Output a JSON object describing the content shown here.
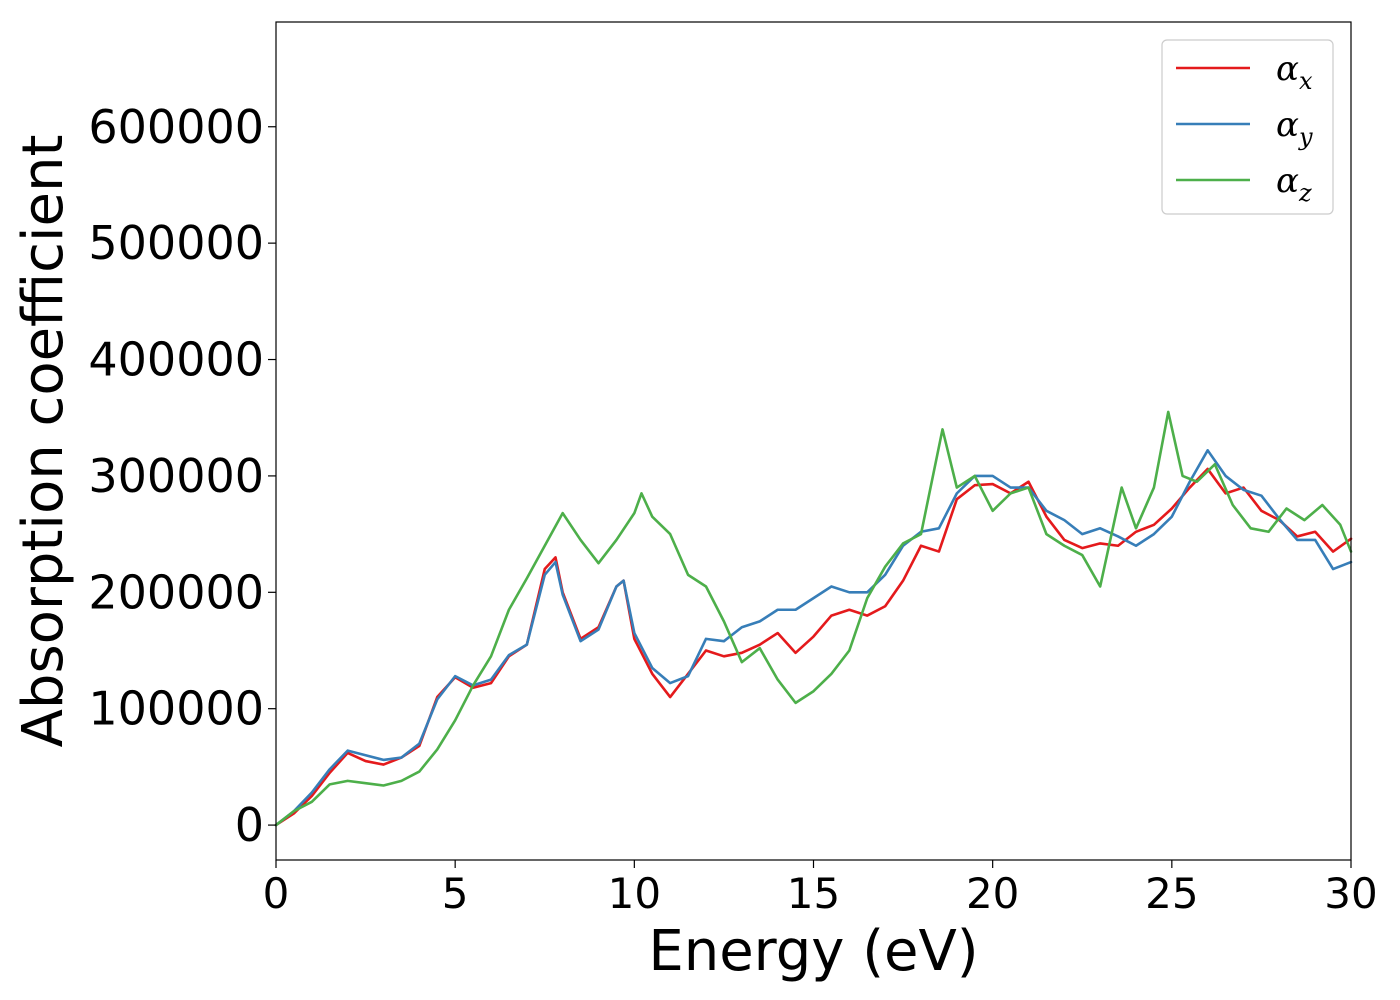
{
  "chart_data": {
    "type": "line",
    "title": "",
    "xlabel": "Energy (eV)",
    "ylabel": "Absorption coefficient",
    "xlim": [
      0,
      30
    ],
    "ylim": [
      -30000,
      690000
    ],
    "x_ticks": [
      0,
      5,
      10,
      15,
      20,
      25,
      30
    ],
    "x_tick_labels": [
      "0",
      "5",
      "10",
      "15",
      "20",
      "25",
      "30"
    ],
    "y_ticks": [
      0,
      100000,
      200000,
      300000,
      400000,
      500000,
      600000
    ],
    "y_tick_labels": [
      "0",
      "100000",
      "200000",
      "300000",
      "400000",
      "500000",
      "600000"
    ],
    "grid": false,
    "legend_position": "top-right",
    "series": [
      {
        "name": "α",
        "subscript": "x",
        "color": "#e41a1c",
        "x": [
          0,
          0.5,
          1,
          1.5,
          2,
          2.5,
          3,
          3.5,
          4,
          4.5,
          5,
          5.5,
          6,
          6.5,
          7,
          7.5,
          7.8,
          8,
          8.5,
          9,
          9.5,
          9.7,
          10,
          10.5,
          11,
          11.5,
          12,
          12.5,
          13,
          13.5,
          14,
          14.5,
          15,
          15.5,
          16,
          16.5,
          17,
          17.5,
          18,
          18.5,
          19,
          19.5,
          20,
          20.5,
          21,
          21.5,
          22,
          22.5,
          23,
          23.5,
          24,
          24.5,
          25,
          25.5,
          26,
          26.5,
          27,
          27.5,
          28,
          28.5,
          29,
          29.5,
          30
        ],
        "y": [
          0,
          10000,
          25000,
          45000,
          62000,
          55000,
          52000,
          58000,
          68000,
          110000,
          127000,
          118000,
          122000,
          145000,
          155000,
          220000,
          230000,
          200000,
          160000,
          170000,
          205000,
          210000,
          160000,
          130000,
          110000,
          130000,
          150000,
          145000,
          148000,
          155000,
          165000,
          148000,
          162000,
          180000,
          185000,
          180000,
          188000,
          210000,
          240000,
          235000,
          280000,
          292000,
          293000,
          285000,
          295000,
          265000,
          245000,
          238000,
          242000,
          240000,
          252000,
          258000,
          272000,
          290000,
          306000,
          285000,
          290000,
          270000,
          262000,
          248000,
          252000,
          235000,
          246000
        ]
      },
      {
        "name": "α",
        "subscript": "y",
        "color": "#377eb8",
        "x": [
          0,
          0.5,
          1,
          1.5,
          2,
          2.5,
          3,
          3.5,
          4,
          4.5,
          5,
          5.5,
          6,
          6.5,
          7,
          7.5,
          7.8,
          8,
          8.5,
          9,
          9.5,
          9.7,
          10,
          10.5,
          11,
          11.5,
          12,
          12.5,
          13,
          13.5,
          14,
          14.5,
          15,
          15.5,
          16,
          16.5,
          17,
          17.5,
          18,
          18.5,
          19,
          19.5,
          20,
          20.5,
          21,
          21.5,
          22,
          22.5,
          23,
          23.5,
          24,
          24.5,
          25,
          25.5,
          26,
          26.5,
          27,
          27.5,
          28,
          28.5,
          29,
          29.5,
          30
        ],
        "y": [
          0,
          12000,
          28000,
          48000,
          64000,
          60000,
          56000,
          58000,
          70000,
          108000,
          128000,
          120000,
          125000,
          146000,
          155000,
          215000,
          226000,
          198000,
          158000,
          168000,
          205000,
          210000,
          165000,
          135000,
          122000,
          128000,
          160000,
          158000,
          170000,
          175000,
          185000,
          185000,
          195000,
          205000,
          200000,
          200000,
          215000,
          240000,
          252000,
          255000,
          285000,
          300000,
          300000,
          290000,
          290000,
          270000,
          262000,
          250000,
          255000,
          248000,
          240000,
          250000,
          265000,
          295000,
          322000,
          300000,
          288000,
          283000,
          263000,
          245000,
          245000,
          220000,
          226000
        ]
      },
      {
        "name": "α",
        "subscript": "z",
        "color": "#4daf4a",
        "x": [
          0,
          0.5,
          1,
          1.5,
          2,
          2.5,
          3,
          3.5,
          4,
          4.5,
          5,
          5.5,
          6,
          6.5,
          7,
          7.5,
          8,
          8.5,
          9,
          9.5,
          10,
          10.2,
          10.5,
          11,
          11.5,
          12,
          12.5,
          13,
          13.5,
          14,
          14.5,
          15,
          15.5,
          16,
          16.5,
          17,
          17.5,
          18,
          18.6,
          19,
          19.5,
          20,
          20.5,
          21,
          21.5,
          22,
          22.5,
          23,
          23.6,
          24,
          24.5,
          24.9,
          25.3,
          25.7,
          26.2,
          26.7,
          27.2,
          27.7,
          28.2,
          28.7,
          29.2,
          29.7,
          30
        ],
        "y": [
          0,
          12000,
          20000,
          35000,
          38000,
          36000,
          34000,
          38000,
          46000,
          65000,
          90000,
          120000,
          145000,
          185000,
          212000,
          240000,
          268000,
          245000,
          225000,
          245000,
          268000,
          285000,
          265000,
          250000,
          215000,
          205000,
          175000,
          140000,
          152000,
          125000,
          105000,
          115000,
          130000,
          150000,
          195000,
          222000,
          242000,
          250000,
          340000,
          290000,
          300000,
          270000,
          285000,
          290000,
          250000,
          240000,
          232000,
          205000,
          290000,
          255000,
          290000,
          355000,
          300000,
          295000,
          310000,
          275000,
          255000,
          252000,
          272000,
          262000,
          275000,
          258000,
          235000
        ]
      }
    ]
  }
}
